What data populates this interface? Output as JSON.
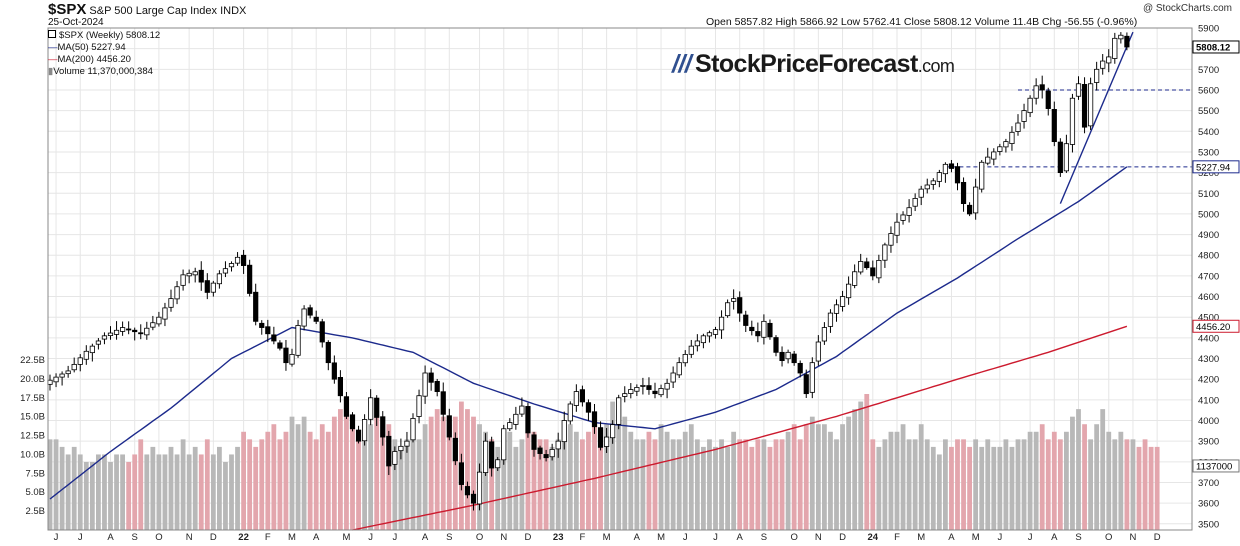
{
  "header": {
    "symbol": "$SPX",
    "description": "S&P 500 Large Cap Index",
    "exchange": "INDX",
    "date": "25-Oct-2024",
    "credit": "@ StockCharts.com",
    "ohlc": "Open 5857.82  High 5866.92  Low 5762.41  Close 5808.12  Volume 11.4B  Chg -56.55 (-0.96%)"
  },
  "legend": {
    "price": "$SPX (Weekly) 5808.12",
    "ma50": "MA(50) 5227.94",
    "ma200": "MA(200) 4456.20",
    "volume": "Volume 11,370,000,384"
  },
  "watermark": {
    "brand": "StockPriceForecast",
    "domain": ".com"
  },
  "colors": {
    "up": "#ffffff",
    "down": "#000000",
    "ma50": "#1c2a8c",
    "ma200": "#cc1a2e",
    "vol_up": "#b8b8b8",
    "vol_down": "#e3a6ad",
    "trend": "#1c2a8c",
    "grid": "#e6e6e6"
  },
  "chart_data": {
    "type": "candlestick",
    "timeframe": "weekly",
    "price_ylim": [
      3470,
      5900
    ],
    "price_ticks": [
      3500,
      3600,
      3700,
      3800,
      3900,
      4000,
      4100,
      4200,
      4300,
      4400,
      4500,
      4600,
      4700,
      4800,
      4900,
      5000,
      5100,
      5200,
      5300,
      5400,
      5500,
      5600,
      5700,
      5800,
      5900
    ],
    "price_tick_labels": [
      "3500",
      "3600",
      "3700",
      "3800",
      "3900",
      "4000",
      "4100",
      "4200",
      "4300",
      "4400",
      "4500",
      "4600",
      "4700",
      "4800",
      "4900",
      "5000",
      "5100",
      "5200",
      "5300",
      "5400",
      "5500",
      "5600",
      "5700",
      "5800",
      "5900"
    ],
    "volume_ylim": [
      0,
      22.5
    ],
    "volume_ticks": [
      2.5,
      5,
      7.5,
      10,
      12.5,
      15,
      17.5,
      20,
      22.5
    ],
    "volume_tick_labels": [
      "2.5B",
      "5.0B",
      "7.5B",
      "10.0B",
      "12.5B",
      "15.0B",
      "17.5B",
      "20.0B",
      "22.5B"
    ],
    "x_labels": [
      {
        "label": "J",
        "week": 1
      },
      {
        "label": "J",
        "week": 5
      },
      {
        "label": "A",
        "week": 10
      },
      {
        "label": "S",
        "week": 14
      },
      {
        "label": "O",
        "week": 18
      },
      {
        "label": "N",
        "week": 23
      },
      {
        "label": "D",
        "week": 27
      },
      {
        "label": "22",
        "week": 32
      },
      {
        "label": "F",
        "week": 36
      },
      {
        "label": "M",
        "week": 40
      },
      {
        "label": "A",
        "week": 44
      },
      {
        "label": "M",
        "week": 49
      },
      {
        "label": "J",
        "week": 53
      },
      {
        "label": "J",
        "week": 57
      },
      {
        "label": "A",
        "week": 62
      },
      {
        "label": "S",
        "week": 66
      },
      {
        "label": "O",
        "week": 71
      },
      {
        "label": "N",
        "week": 75
      },
      {
        "label": "D",
        "week": 79
      },
      {
        "label": "23",
        "week": 84
      },
      {
        "label": "F",
        "week": 88
      },
      {
        "label": "M",
        "week": 92
      },
      {
        "label": "A",
        "week": 97
      },
      {
        "label": "M",
        "week": 101
      },
      {
        "label": "J",
        "week": 105
      },
      {
        "label": "J",
        "week": 110
      },
      {
        "label": "A",
        "week": 114
      },
      {
        "label": "S",
        "week": 118
      },
      {
        "label": "O",
        "week": 123
      },
      {
        "label": "N",
        "week": 127
      },
      {
        "label": "D",
        "week": 131
      },
      {
        "label": "24",
        "week": 136
      },
      {
        "label": "F",
        "week": 140
      },
      {
        "label": "M",
        "week": 144
      },
      {
        "label": "A",
        "week": 149
      },
      {
        "label": "M",
        "week": 153
      },
      {
        "label": "J",
        "week": 157
      },
      {
        "label": "J",
        "week": 162
      },
      {
        "label": "A",
        "week": 166
      },
      {
        "label": "S",
        "week": 170
      },
      {
        "label": "O",
        "week": 175
      },
      {
        "label": "N",
        "week": 179
      },
      {
        "label": "D",
        "week": 183
      }
    ],
    "price_series": [
      {
        "week": 0,
        "close": 4195
      },
      {
        "week": 3,
        "close": 4240
      },
      {
        "week": 6,
        "close": 4335
      },
      {
        "week": 9,
        "close": 4410
      },
      {
        "week": 12,
        "close": 4450
      },
      {
        "week": 15,
        "close": 4420
      },
      {
        "week": 18,
        "close": 4500
      },
      {
        "week": 20,
        "close": 4590
      },
      {
        "week": 22,
        "close": 4705
      },
      {
        "week": 24,
        "close": 4720
      },
      {
        "week": 26,
        "close": 4620
      },
      {
        "week": 28,
        "close": 4710
      },
      {
        "week": 30,
        "close": 4760
      },
      {
        "week": 31,
        "close": 4790
      },
      {
        "week": 32,
        "close": 4750
      },
      {
        "week": 34,
        "close": 4480
      },
      {
        "week": 36,
        "close": 4420
      },
      {
        "week": 38,
        "close": 4350
      },
      {
        "week": 39,
        "close": 4280
      },
      {
        "week": 40,
        "close": 4320
      },
      {
        "week": 41,
        "close": 4460
      },
      {
        "week": 42,
        "close": 4540
      },
      {
        "week": 44,
        "close": 4480
      },
      {
        "week": 46,
        "close": 4280
      },
      {
        "week": 48,
        "close": 4120
      },
      {
        "week": 49,
        "close": 4020
      },
      {
        "week": 51,
        "close": 3900
      },
      {
        "week": 53,
        "close": 4110
      },
      {
        "week": 55,
        "close": 3920
      },
      {
        "week": 56,
        "close": 3780
      },
      {
        "week": 57,
        "close": 3850
      },
      {
        "week": 59,
        "close": 3900
      },
      {
        "week": 61,
        "close": 4120
      },
      {
        "week": 62,
        "close": 4230
      },
      {
        "week": 64,
        "close": 4140
      },
      {
        "week": 66,
        "close": 3920
      },
      {
        "week": 68,
        "close": 3690
      },
      {
        "week": 69,
        "close": 3640
      },
      {
        "week": 70,
        "close": 3600
      },
      {
        "week": 71,
        "close": 3750
      },
      {
        "week": 72,
        "close": 3900
      },
      {
        "week": 73,
        "close": 3770
      },
      {
        "week": 74,
        "close": 3810
      },
      {
        "week": 75,
        "close": 3960
      },
      {
        "week": 76,
        "close": 3990
      },
      {
        "week": 78,
        "close": 4070
      },
      {
        "week": 79,
        "close": 3940
      },
      {
        "week": 80,
        "close": 3860
      },
      {
        "week": 82,
        "close": 3820
      },
      {
        "week": 84,
        "close": 3900
      },
      {
        "week": 85,
        "close": 4000
      },
      {
        "week": 86,
        "close": 4080
      },
      {
        "week": 87,
        "close": 4140
      },
      {
        "week": 88,
        "close": 4090
      },
      {
        "week": 89,
        "close": 4040
      },
      {
        "week": 90,
        "close": 3970
      },
      {
        "week": 91,
        "close": 3870
      },
      {
        "week": 92,
        "close": 3920
      },
      {
        "week": 93,
        "close": 3980
      },
      {
        "week": 94,
        "close": 4110
      },
      {
        "week": 96,
        "close": 4150
      },
      {
        "week": 98,
        "close": 4170
      },
      {
        "week": 100,
        "close": 4130
      },
      {
        "week": 102,
        "close": 4180
      },
      {
        "week": 104,
        "close": 4280
      },
      {
        "week": 106,
        "close": 4360
      },
      {
        "week": 108,
        "close": 4410
      },
      {
        "week": 110,
        "close": 4440
      },
      {
        "week": 111,
        "close": 4500
      },
      {
        "week": 112,
        "close": 4570
      },
      {
        "week": 113,
        "close": 4590
      },
      {
        "week": 114,
        "close": 4520
      },
      {
        "week": 115,
        "close": 4460
      },
      {
        "week": 117,
        "close": 4410
      },
      {
        "week": 118,
        "close": 4480
      },
      {
        "week": 120,
        "close": 4330
      },
      {
        "week": 121,
        "close": 4290
      },
      {
        "week": 122,
        "close": 4330
      },
      {
        "week": 123,
        "close": 4280
      },
      {
        "week": 124,
        "close": 4230
      },
      {
        "week": 125,
        "close": 4130
      },
      {
        "week": 126,
        "close": 4280
      },
      {
        "week": 127,
        "close": 4380
      },
      {
        "week": 129,
        "close": 4520
      },
      {
        "week": 131,
        "close": 4600
      },
      {
        "week": 133,
        "close": 4720
      },
      {
        "week": 134,
        "close": 4770
      },
      {
        "week": 135,
        "close": 4740
      },
      {
        "week": 136,
        "close": 4700
      },
      {
        "week": 138,
        "close": 4850
      },
      {
        "week": 140,
        "close": 4960
      },
      {
        "week": 142,
        "close": 5030
      },
      {
        "week": 144,
        "close": 5120
      },
      {
        "week": 146,
        "close": 5160
      },
      {
        "week": 148,
        "close": 5240
      },
      {
        "week": 149,
        "close": 5220
      },
      {
        "week": 150,
        "close": 5150
      },
      {
        "week": 151,
        "close": 5050
      },
      {
        "week": 152,
        "close": 5000
      },
      {
        "week": 153,
        "close": 5130
      },
      {
        "week": 154,
        "close": 5250
      },
      {
        "week": 156,
        "close": 5300
      },
      {
        "week": 158,
        "close": 5350
      },
      {
        "week": 160,
        "close": 5440
      },
      {
        "week": 162,
        "close": 5560
      },
      {
        "week": 163,
        "close": 5620
      },
      {
        "week": 164,
        "close": 5600
      },
      {
        "week": 165,
        "close": 5510
      },
      {
        "week": 166,
        "close": 5350
      },
      {
        "week": 167,
        "close": 5200
      },
      {
        "week": 168,
        "close": 5340
      },
      {
        "week": 169,
        "close": 5560
      },
      {
        "week": 170,
        "close": 5630
      },
      {
        "week": 171,
        "close": 5420
      },
      {
        "week": 172,
        "close": 5630
      },
      {
        "week": 173,
        "close": 5700
      },
      {
        "week": 174,
        "close": 5740
      },
      {
        "week": 175,
        "close": 5760
      },
      {
        "week": 176,
        "close": 5850
      },
      {
        "week": 177,
        "close": 5865
      },
      {
        "week": 178,
        "close": 5808
      }
    ],
    "ma50_series": [
      {
        "week": 0,
        "value": 3620
      },
      {
        "week": 10,
        "value": 3850
      },
      {
        "week": 20,
        "value": 4060
      },
      {
        "week": 30,
        "value": 4300
      },
      {
        "week": 40,
        "value": 4450
      },
      {
        "week": 50,
        "value": 4400
      },
      {
        "week": 60,
        "value": 4330
      },
      {
        "week": 70,
        "value": 4180
      },
      {
        "week": 80,
        "value": 4080
      },
      {
        "week": 90,
        "value": 3990
      },
      {
        "week": 100,
        "value": 3960
      },
      {
        "week": 110,
        "value": 4040
      },
      {
        "week": 120,
        "value": 4150
      },
      {
        "week": 130,
        "value": 4310
      },
      {
        "week": 140,
        "value": 4520
      },
      {
        "week": 150,
        "value": 4690
      },
      {
        "week": 160,
        "value": 4880
      },
      {
        "week": 170,
        "value": 5060
      },
      {
        "week": 178,
        "value": 5228
      }
    ],
    "ma200_series": [
      {
        "week": 50,
        "value": 3470
      },
      {
        "week": 70,
        "value": 3590
      },
      {
        "week": 90,
        "value": 3720
      },
      {
        "week": 110,
        "value": 3860
      },
      {
        "week": 130,
        "value": 4020
      },
      {
        "week": 150,
        "value": 4200
      },
      {
        "week": 165,
        "value": 4330
      },
      {
        "week": 178,
        "value": 4456
      }
    ],
    "volume_series": [
      12,
      12,
      11,
      10,
      11,
      10,
      9,
      9,
      10,
      10,
      9,
      10,
      10,
      9,
      10,
      12,
      10,
      11,
      10,
      10,
      11,
      10,
      12,
      10,
      11,
      10,
      12,
      10,
      11,
      9,
      10,
      11,
      13,
      12,
      11,
      12,
      13,
      14,
      12,
      13,
      15,
      14,
      15,
      13,
      12,
      14,
      13,
      15,
      16,
      15,
      14,
      13,
      12,
      14,
      15,
      13,
      14,
      12,
      11,
      12,
      13,
      12,
      14,
      15,
      16,
      15,
      14,
      15,
      17,
      16,
      15,
      14,
      13,
      12,
      11,
      12,
      13,
      11,
      12,
      14,
      13,
      12,
      12,
      11,
      12,
      12,
      14,
      13,
      12,
      13,
      14,
      12,
      14,
      17,
      16,
      15,
      13,
      12,
      12,
      13,
      12,
      14,
      13,
      12,
      12,
      13,
      14,
      12,
      11,
      12,
      11,
      12,
      11,
      13,
      12,
      12,
      11,
      12,
      12,
      11,
      12,
      12,
      13,
      14,
      12,
      14,
      15,
      14,
      14,
      13,
      12,
      14,
      15,
      16,
      17,
      18,
      12,
      11,
      12,
      13,
      13,
      14,
      12,
      12,
      14,
      12,
      11,
      10,
      12,
      11,
      12,
      12,
      11,
      12,
      11,
      12,
      11,
      11,
      12,
      11,
      12,
      12,
      13,
      13,
      14,
      12,
      13,
      12,
      13,
      15,
      16,
      14,
      12,
      14,
      16,
      13,
      12,
      13,
      12,
      12,
      11,
      12,
      11,
      11
    ],
    "horizontal_levels": [
      {
        "value": 5600,
        "label": ""
      },
      {
        "value": 5228,
        "label": "5227.94"
      }
    ],
    "trendline": [
      {
        "week": 167,
        "value": 5050
      },
      {
        "week": 179,
        "value": 5880
      }
    ],
    "price_labels": [
      {
        "value": 5808.12,
        "label": "5808.12"
      },
      {
        "value": 4456.2,
        "label": "4456.20"
      },
      {
        "value": 3780,
        "label": "1137000"
      }
    ]
  }
}
